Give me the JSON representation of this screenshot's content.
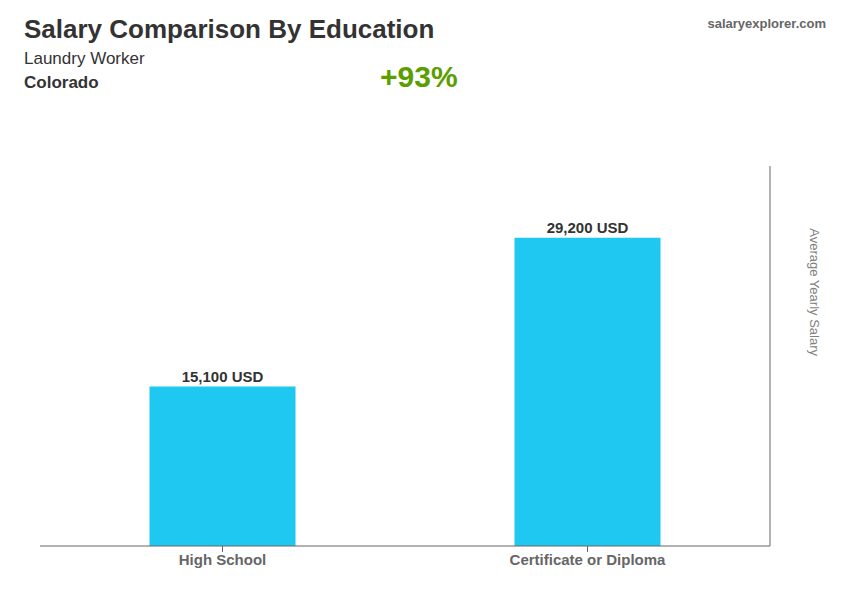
{
  "chart_data": {
    "type": "bar",
    "title": "Salary Comparison By Education",
    "subtitle": [
      "Laundry Worker",
      "Colorado"
    ],
    "annotations": [
      "+93%",
      "salaryexplorer.com"
    ],
    "ylabel": "Average Yearly Salary",
    "categories": [
      "High School",
      "Certificate or Diploma"
    ],
    "values": [
      15100,
      29200
    ],
    "value_labels": [
      "15,100 USD",
      "29,200 USD"
    ],
    "data_labels": true,
    "color": "#1EC8F0",
    "ylim": [
      0,
      36000
    ],
    "tick_labels": "x",
    "grid": false,
    "legend": false
  }
}
